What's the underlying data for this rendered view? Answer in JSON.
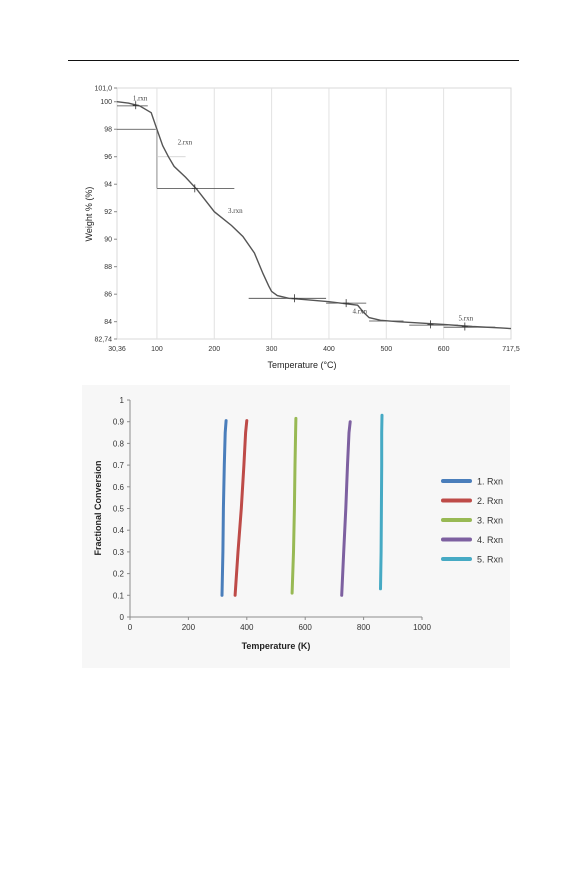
{
  "chart_data": [
    {
      "type": "line",
      "xlabel": "Temperature (°C)",
      "ylabel": "Weight % (%)",
      "xlim": [
        30.36,
        717.5
      ],
      "ylim": [
        82.74,
        101.0
      ],
      "x_ticks": [
        "30,36",
        "100",
        "200",
        "300",
        "400",
        "500",
        "600",
        "717,5"
      ],
      "x_tick_values": [
        30.36,
        100,
        200,
        300,
        400,
        500,
        600,
        717.5
      ],
      "y_ticks": [
        "82,74",
        "84",
        "86",
        "88",
        "90",
        "92",
        "94",
        "96",
        "98",
        "100",
        "101,0"
      ],
      "y_tick_values": [
        82.74,
        84,
        86,
        88,
        90,
        92,
        94,
        96,
        98,
        100,
        101.0
      ],
      "grid": "vertical",
      "series": [
        {
          "x": [
            30.36,
            50,
            70,
            90,
            100,
            110,
            120,
            130,
            150,
            170,
            200,
            230,
            250,
            270,
            285,
            295,
            300,
            310,
            330,
            360,
            400,
            430,
            450,
            460,
            470,
            490,
            520,
            560,
            600,
            650,
            700,
            717.5
          ],
          "y": [
            100.0,
            99.9,
            99.7,
            99.2,
            98.0,
            96.8,
            96.0,
            95.3,
            94.5,
            93.6,
            92.0,
            91.0,
            90.2,
            89.0,
            87.5,
            86.6,
            86.2,
            85.9,
            85.7,
            85.6,
            85.45,
            85.3,
            85.2,
            84.7,
            84.3,
            84.1,
            84.0,
            83.9,
            83.8,
            83.65,
            83.55,
            83.5
          ]
        }
      ],
      "annotations": [
        "1.rxn",
        "2.rxn",
        "3.rxn",
        "4.rxn",
        "5.rxn"
      ]
    },
    {
      "type": "line",
      "xlabel": "Temperature (K)",
      "ylabel": "Fractional Conversion",
      "xlim": [
        0,
        1000
      ],
      "ylim": [
        0,
        1
      ],
      "x_ticks": [
        "0",
        "200",
        "400",
        "600",
        "800",
        "1000"
      ],
      "y_ticks": [
        "0",
        "0.1",
        "0.2",
        "0.3",
        "0.4",
        "0.5",
        "0.6",
        "0.7",
        "0.8",
        "0.9",
        "1"
      ],
      "legend": "right",
      "series": [
        {
          "name": "1. Rxn",
          "color": "#4a7ebb",
          "x": [
            315,
            318,
            320,
            323,
            326,
            329
          ],
          "y": [
            0.1,
            0.3,
            0.5,
            0.7,
            0.85,
            0.905
          ]
        },
        {
          "name": "2. Rxn",
          "color": "#be4b48",
          "x": [
            360,
            370,
            381,
            390,
            396,
            400
          ],
          "y": [
            0.1,
            0.3,
            0.5,
            0.7,
            0.85,
            0.905
          ]
        },
        {
          "name": "3. Rxn",
          "color": "#98b954",
          "x": [
            555,
            560,
            563,
            565,
            567,
            568
          ],
          "y": [
            0.11,
            0.3,
            0.5,
            0.7,
            0.85,
            0.915
          ]
        },
        {
          "name": "4. Rxn",
          "color": "#7d60a0",
          "x": [
            725,
            732,
            739,
            745,
            750,
            754
          ],
          "y": [
            0.1,
            0.3,
            0.5,
            0.7,
            0.85,
            0.9
          ]
        },
        {
          "name": "5. Rxn",
          "color": "#46aac4",
          "x": [
            858,
            860,
            861,
            862,
            862,
            863
          ],
          "y": [
            0.13,
            0.3,
            0.5,
            0.7,
            0.85,
            0.93
          ]
        }
      ]
    }
  ]
}
